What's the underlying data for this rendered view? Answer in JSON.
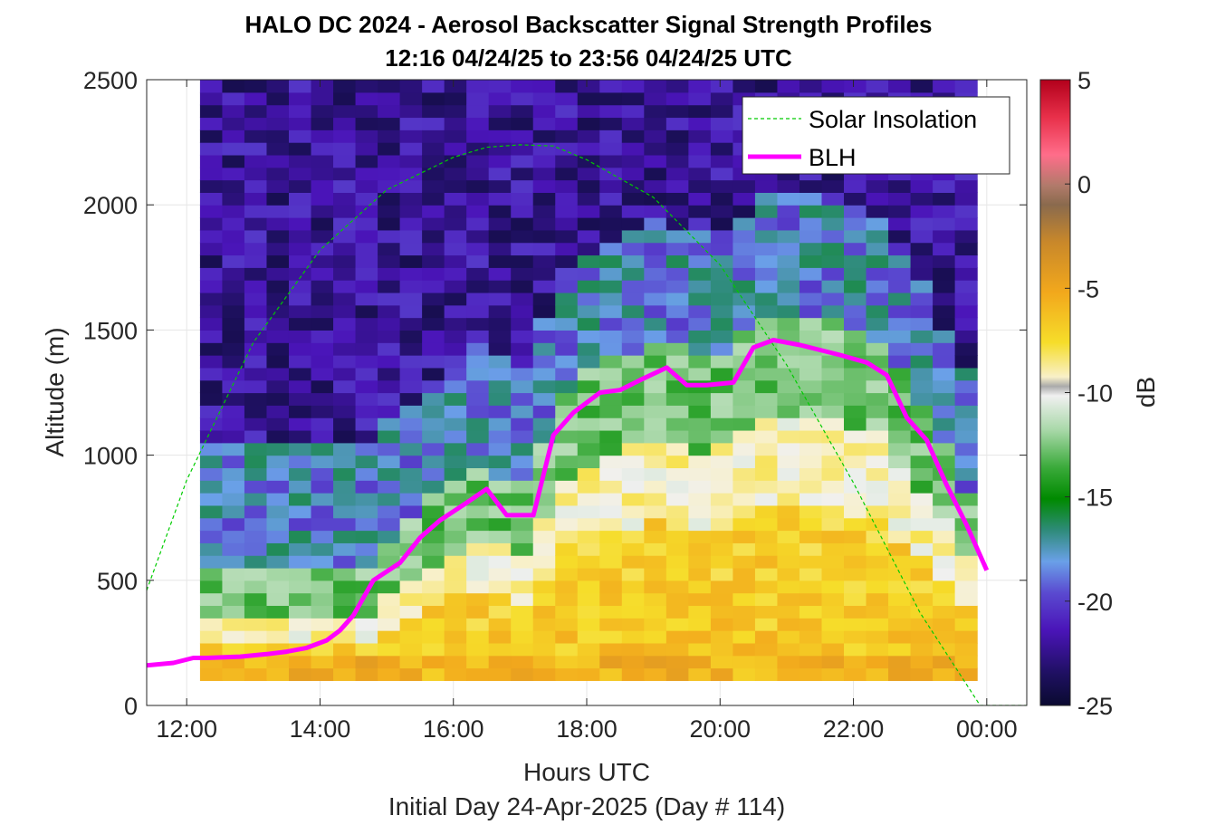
{
  "chart_data": {
    "type": "heatmap",
    "title": "HALO DC 2024 - Aerosol Backscatter Signal Strength Profiles",
    "subtitle": "12:16 04/24/25 to 23:56 04/24/25  UTC",
    "xlabel": "Hours UTC",
    "xlabel2": "Initial Day 24-Apr-2025 (Day # 114)",
    "ylabel": "Altitude (m)",
    "xlim": [
      11.4,
      24.6
    ],
    "ylim": [
      0,
      2500
    ],
    "x_ticks": [
      12,
      14,
      16,
      18,
      20,
      22,
      24
    ],
    "x_tick_labels": [
      "12:00",
      "14:00",
      "16:00",
      "18:00",
      "20:00",
      "22:00",
      "00:00"
    ],
    "y_ticks": [
      0,
      500,
      1000,
      1500,
      2000,
      2500
    ],
    "y_tick_labels": [
      "0",
      "500",
      "1000",
      "1500",
      "2000",
      "2500"
    ],
    "grid": true,
    "legend_position": "top-right",
    "colorbar": {
      "label": "dB",
      "range": [
        -25,
        5
      ],
      "ticks": [
        5,
        0,
        -5,
        -10,
        -15,
        -20,
        -25
      ],
      "tick_labels": [
        "5",
        "0",
        "-5",
        "-10",
        "-15",
        "-20",
        "-25"
      ]
    },
    "heatmap": {
      "x_start": 12.2,
      "x_end": 23.9,
      "x_step": 0.333,
      "y_start": 100,
      "y_end": 2500,
      "y_step": 50,
      "units": "dB"
    },
    "series": [
      {
        "name": "Solar Insolation",
        "style": "dashed",
        "color": "#00cc00",
        "x": [
          11.4,
          12,
          13,
          14,
          15,
          16,
          16.5,
          17,
          17.5,
          18,
          19,
          20,
          21,
          22,
          23,
          23.9,
          24.6
        ],
        "y": [
          460,
          900,
          1450,
          1820,
          2060,
          2190,
          2230,
          2240,
          2235,
          2180,
          2030,
          1760,
          1360,
          890,
          370,
          0,
          0
        ]
      },
      {
        "name": "BLH",
        "style": "solid",
        "color": "#ff00ff",
        "x": [
          11.4,
          11.8,
          12.1,
          12.3,
          12.8,
          13.2,
          13.5,
          13.8,
          14.1,
          14.3,
          14.5,
          14.8,
          15.2,
          15.5,
          15.8,
          16.2,
          16.5,
          16.8,
          17.2,
          17.5,
          17.8,
          18.2,
          18.5,
          18.8,
          19.2,
          19.5,
          19.8,
          20.2,
          20.5,
          20.8,
          21.2,
          21.5,
          21.8,
          22.2,
          22.5,
          22.8,
          23.1,
          23.4,
          23.7,
          24.0
        ],
        "y": [
          160,
          170,
          190,
          190,
          195,
          205,
          215,
          230,
          260,
          300,
          360,
          500,
          570,
          670,
          740,
          810,
          865,
          760,
          760,
          1080,
          1170,
          1250,
          1260,
          1300,
          1350,
          1280,
          1280,
          1290,
          1430,
          1460,
          1440,
          1420,
          1400,
          1370,
          1320,
          1150,
          1060,
          880,
          720,
          540
        ]
      }
    ]
  }
}
